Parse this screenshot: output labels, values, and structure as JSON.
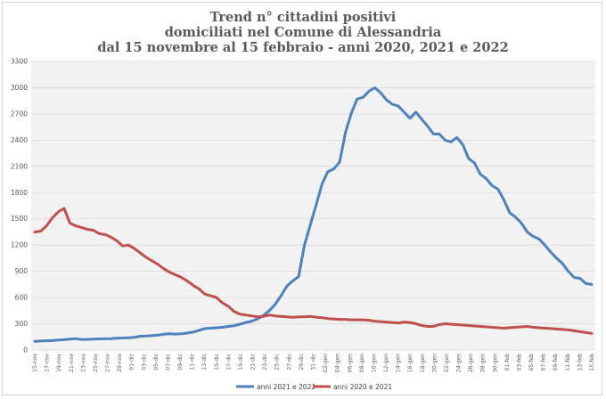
{
  "chart_data": {
    "type": "line",
    "title": [
      "Trend n° cittadini positivi",
      "domiciliati nel Comune di Alessandria",
      "dal 15 novembre al 15 febbraio - anni 2020, 2021 e 2022"
    ],
    "xlabel": "",
    "ylabel": "",
    "ylim": [
      0,
      3300
    ],
    "yticks": [
      0,
      300,
      600,
      900,
      1200,
      1500,
      1800,
      2100,
      2400,
      2700,
      3000,
      3300
    ],
    "grid": true,
    "legend_position": "bottom",
    "x_tick_labels": [
      "15-nov",
      "17-nov",
      "19-nov",
      "21-nov",
      "23-nov",
      "25-nov",
      "27-nov",
      "29-nov",
      "01-dic",
      "03-dic",
      "05-dic",
      "07-dic",
      "09-dic",
      "11-dic",
      "13-dic",
      "15-dic",
      "17-dic",
      "19-dic",
      "21-dic",
      "23-dic",
      "25-dic",
      "27-dic",
      "29-dic",
      "31-dic",
      "02-gen",
      "04-gen",
      "06-gen",
      "08-gen",
      "10-gen",
      "12-gen",
      "14-gen",
      "16-gen",
      "18-gen",
      "20-gen",
      "22-gen",
      "24-gen",
      "26-gen",
      "28-gen",
      "30-gen",
      "01-feb",
      "03-feb",
      "05-feb",
      "07-feb",
      "09-feb",
      "11-feb",
      "13-feb",
      "15-feb"
    ],
    "series": [
      {
        "name": "anni 2021 e 2022",
        "color": "#4f81bd",
        "values": [
          100,
          103,
          106,
          108,
          115,
          118,
          125,
          130,
          120,
          122,
          125,
          127,
          128,
          130,
          135,
          138,
          140,
          145,
          158,
          160,
          165,
          170,
          180,
          185,
          182,
          185,
          195,
          205,
          225,
          245,
          250,
          255,
          260,
          270,
          278,
          295,
          315,
          330,
          355,
          395,
          450,
          520,
          620,
          730,
          790,
          840,
          1200,
          1430,
          1660,
          1900,
          2040,
          2070,
          2150,
          2490,
          2710,
          2870,
          2890,
          2960,
          3000,
          2940,
          2860,
          2810,
          2790,
          2720,
          2650,
          2720,
          2640,
          2560,
          2470,
          2470,
          2400,
          2380,
          2430,
          2350,
          2190,
          2140,
          2010,
          1960,
          1880,
          1840,
          1720,
          1570,
          1520,
          1450,
          1350,
          1300,
          1270,
          1200,
          1120,
          1050,
          990,
          900,
          830,
          820,
          760,
          750
        ]
      },
      {
        "name": "anni 2020 e 2021",
        "color": "#c0504d",
        "values": [
          1350,
          1360,
          1420,
          1510,
          1580,
          1620,
          1450,
          1420,
          1400,
          1380,
          1370,
          1330,
          1320,
          1290,
          1250,
          1190,
          1200,
          1160,
          1110,
          1060,
          1020,
          980,
          930,
          890,
          860,
          830,
          790,
          740,
          700,
          640,
          620,
          600,
          540,
          500,
          440,
          410,
          400,
          390,
          380,
          385,
          400,
          390,
          385,
          380,
          375,
          380,
          380,
          385,
          375,
          370,
          360,
          355,
          350,
          350,
          345,
          345,
          345,
          340,
          330,
          325,
          320,
          315,
          310,
          320,
          315,
          300,
          280,
          270,
          270,
          290,
          300,
          295,
          290,
          285,
          280,
          275,
          270,
          265,
          260,
          255,
          250,
          255,
          260,
          265,
          270,
          260,
          255,
          250,
          245,
          240,
          235,
          230,
          220,
          210,
          200,
          190
        ]
      }
    ]
  }
}
